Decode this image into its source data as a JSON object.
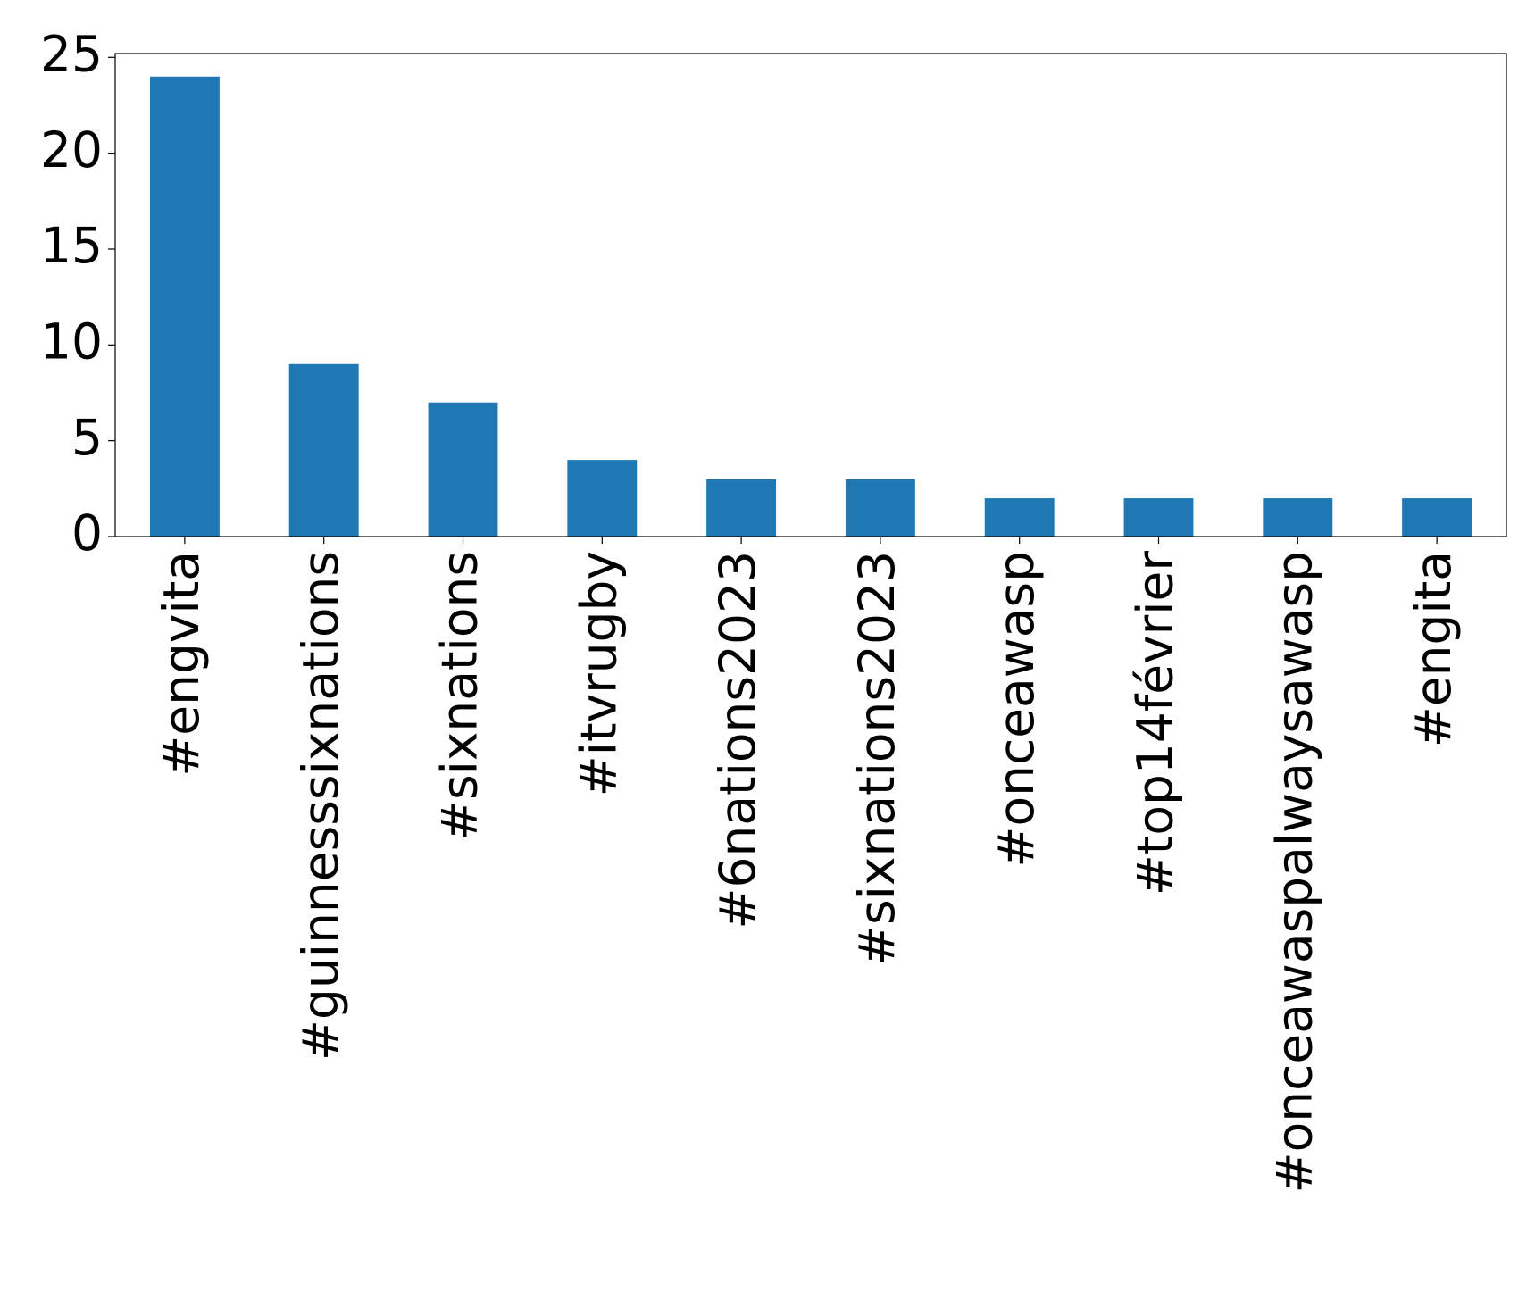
{
  "chart_data": {
    "type": "bar",
    "categories": [
      "#engvita",
      "#guinnesssixnations",
      "#sixnations",
      "#itvrugby",
      "#6nations2023",
      "#sixnations2023",
      "#onceawasp",
      "#top14février",
      "#onceawaspalwaysawasp",
      "#engita"
    ],
    "values": [
      24,
      9,
      7,
      4,
      3,
      3,
      2,
      2,
      2,
      2
    ],
    "color": "#1f77b4",
    "ylim": [
      0,
      25.2
    ],
    "yticks": [
      0,
      5,
      10,
      15,
      20,
      25
    ],
    "grid": false
  }
}
